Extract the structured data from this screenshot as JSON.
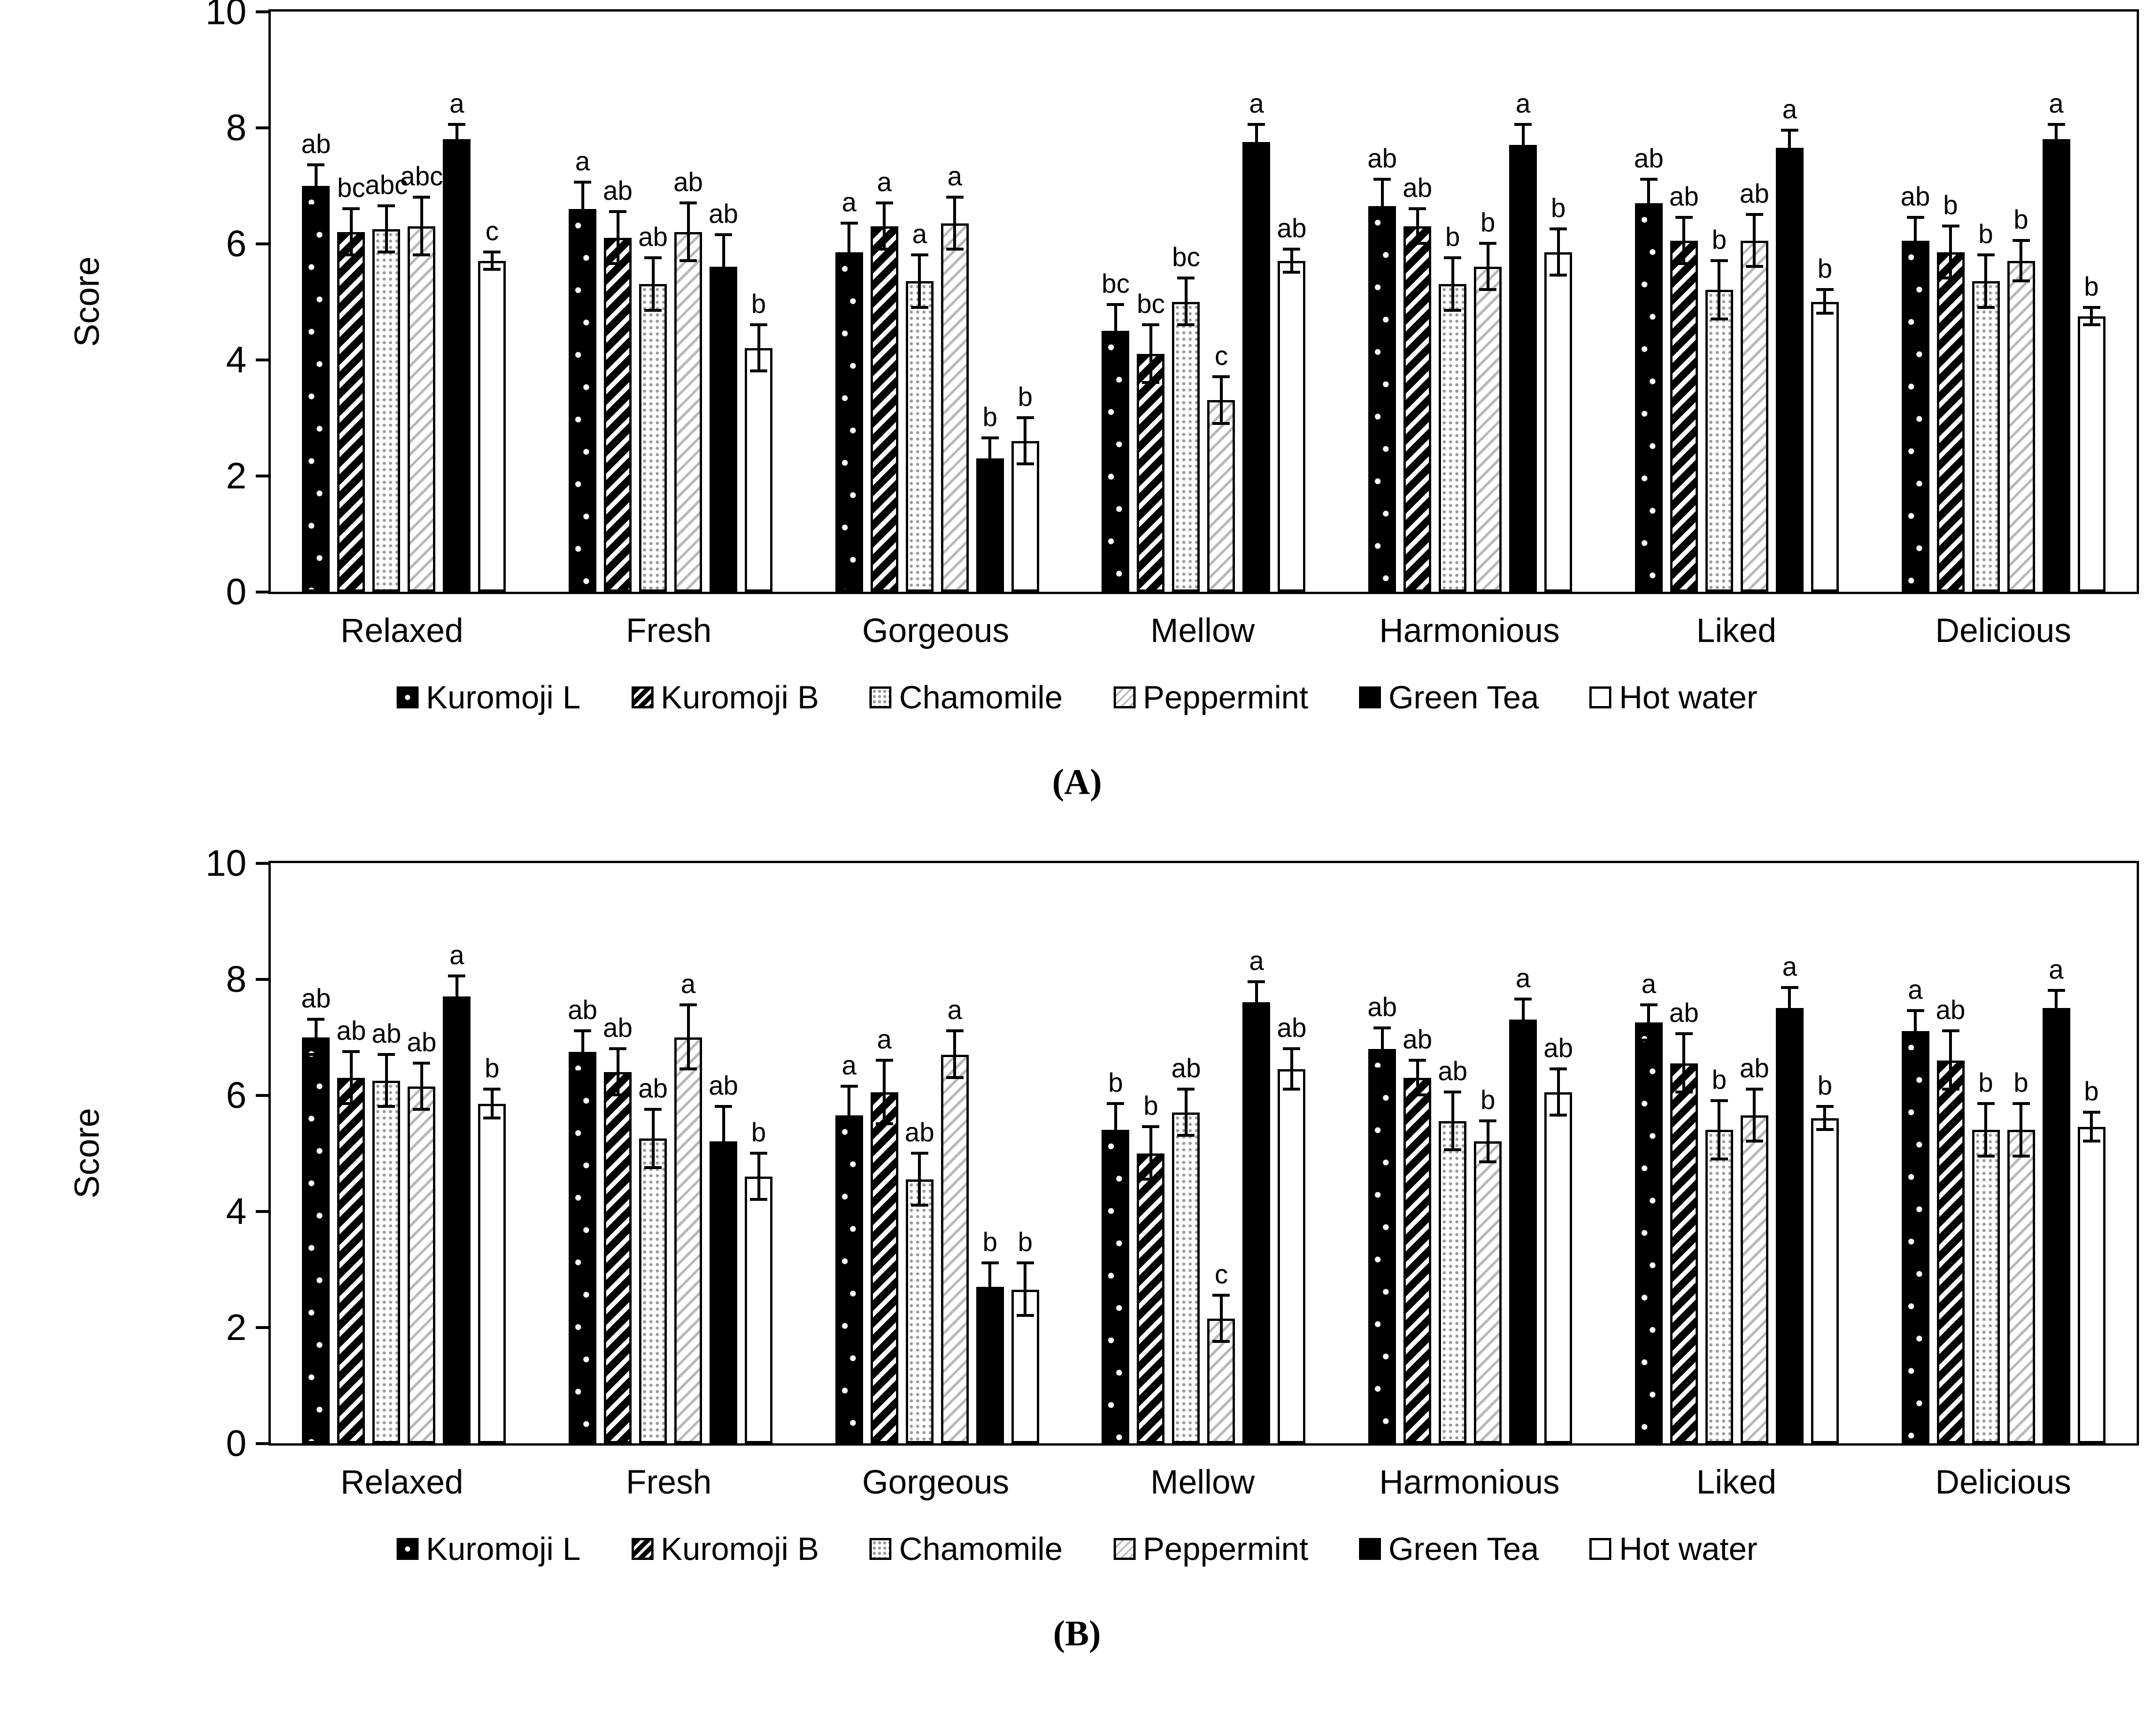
{
  "chart_data": [
    {
      "type": "bar",
      "panel_label": "(A)",
      "ylabel": "Score",
      "ylim": [
        0,
        10
      ],
      "yticks": [
        0,
        2,
        4,
        6,
        8,
        10
      ],
      "grid": false,
      "legend_position": "bottom",
      "categories": [
        "Relaxed",
        "Fresh",
        "Gorgeous",
        "Mellow",
        "Harmonious",
        "Liked",
        "Delicious"
      ],
      "series": [
        {
          "name": "Kuromoji L",
          "pattern": "dotted-black",
          "values": [
            7.0,
            6.6,
            5.85,
            4.5,
            6.65,
            6.7,
            6.05
          ],
          "errors": [
            0.35,
            0.45,
            0.5,
            0.45,
            0.45,
            0.4,
            0.4
          ],
          "letters": [
            "ab",
            "a",
            "a",
            "bc",
            "ab",
            "ab",
            "ab"
          ]
        },
        {
          "name": "Kuromoji B",
          "pattern": "diagonal-black",
          "values": [
            6.2,
            6.1,
            6.3,
            4.1,
            6.3,
            6.05,
            5.85
          ],
          "errors": [
            0.4,
            0.45,
            0.4,
            0.5,
            0.3,
            0.4,
            0.45
          ],
          "letters": [
            "bc",
            "ab",
            "a",
            "bc",
            "ab",
            "ab",
            "b"
          ]
        },
        {
          "name": "Chamomile",
          "pattern": "dotted-white",
          "values": [
            6.25,
            5.3,
            5.35,
            5.0,
            5.3,
            5.2,
            5.35
          ],
          "errors": [
            0.4,
            0.45,
            0.45,
            0.4,
            0.45,
            0.5,
            0.45
          ],
          "letters": [
            "abc",
            "ab",
            "a",
            "bc",
            "b",
            "b",
            "b"
          ]
        },
        {
          "name": "Peppermint",
          "pattern": "diagonal-light",
          "values": [
            6.3,
            6.2,
            6.35,
            3.3,
            5.6,
            6.05,
            5.7
          ],
          "errors": [
            0.5,
            0.5,
            0.45,
            0.4,
            0.4,
            0.45,
            0.35
          ],
          "letters": [
            "abc",
            "ab",
            "a",
            "c",
            "b",
            "ab",
            "b"
          ]
        },
        {
          "name": "Green Tea",
          "pattern": "solid-black",
          "values": [
            7.8,
            5.6,
            2.3,
            7.75,
            7.7,
            7.65,
            7.8
          ],
          "errors": [
            0.25,
            0.55,
            0.35,
            0.3,
            0.35,
            0.3,
            0.25
          ],
          "letters": [
            "a",
            "ab",
            "b",
            "a",
            "a",
            "a",
            "a"
          ]
        },
        {
          "name": "Hot water",
          "pattern": "plain-white",
          "values": [
            5.7,
            4.2,
            2.6,
            5.7,
            5.85,
            5.0,
            4.75
          ],
          "errors": [
            0.15,
            0.4,
            0.4,
            0.2,
            0.4,
            0.2,
            0.15
          ],
          "letters": [
            "c",
            "b",
            "b",
            "ab",
            "b",
            "b",
            "b"
          ]
        }
      ]
    },
    {
      "type": "bar",
      "panel_label": "(B)",
      "ylabel": "Score",
      "ylim": [
        0,
        10
      ],
      "yticks": [
        0,
        2,
        4,
        6,
        8,
        10
      ],
      "grid": false,
      "legend_position": "bottom",
      "categories": [
        "Relaxed",
        "Fresh",
        "Gorgeous",
        "Mellow",
        "Harmonious",
        "Liked",
        "Delicious"
      ],
      "series": [
        {
          "name": "Kuromoji L",
          "pattern": "dotted-black",
          "values": [
            7.0,
            6.75,
            5.65,
            5.4,
            6.8,
            7.25,
            7.1
          ],
          "errors": [
            0.3,
            0.35,
            0.5,
            0.45,
            0.35,
            0.3,
            0.35
          ],
          "letters": [
            "ab",
            "ab",
            "a",
            "b",
            "ab",
            "a",
            "a"
          ]
        },
        {
          "name": "Kuromoji B",
          "pattern": "diagonal-black",
          "values": [
            6.3,
            6.4,
            6.05,
            5.0,
            6.3,
            6.55,
            6.6
          ],
          "errors": [
            0.45,
            0.4,
            0.55,
            0.45,
            0.3,
            0.5,
            0.5
          ],
          "letters": [
            "ab",
            "ab",
            "a",
            "b",
            "ab",
            "ab",
            "ab"
          ]
        },
        {
          "name": "Chamomile",
          "pattern": "dotted-white",
          "values": [
            6.25,
            5.25,
            4.55,
            5.7,
            5.55,
            5.4,
            5.4
          ],
          "errors": [
            0.45,
            0.5,
            0.45,
            0.4,
            0.5,
            0.5,
            0.45
          ],
          "letters": [
            "ab",
            "ab",
            "ab",
            "ab",
            "ab",
            "b",
            "b"
          ]
        },
        {
          "name": "Peppermint",
          "pattern": "diagonal-light",
          "values": [
            6.15,
            7.0,
            6.7,
            2.15,
            5.2,
            5.65,
            5.4
          ],
          "errors": [
            0.4,
            0.55,
            0.4,
            0.4,
            0.35,
            0.45,
            0.45
          ],
          "letters": [
            "ab",
            "a",
            "a",
            "c",
            "b",
            "ab",
            "b"
          ]
        },
        {
          "name": "Green Tea",
          "pattern": "solid-black",
          "values": [
            7.7,
            5.2,
            2.7,
            7.6,
            7.3,
            7.5,
            7.5
          ],
          "errors": [
            0.35,
            0.6,
            0.4,
            0.35,
            0.35,
            0.35,
            0.3
          ],
          "letters": [
            "a",
            "ab",
            "b",
            "a",
            "a",
            "a",
            "a"
          ]
        },
        {
          "name": "Hot water",
          "pattern": "plain-white",
          "values": [
            5.85,
            4.6,
            2.65,
            6.45,
            6.05,
            5.6,
            5.45
          ],
          "errors": [
            0.25,
            0.4,
            0.45,
            0.35,
            0.4,
            0.2,
            0.25
          ],
          "letters": [
            "b",
            "b",
            "b",
            "ab",
            "ab",
            "b",
            "b"
          ]
        }
      ]
    }
  ]
}
